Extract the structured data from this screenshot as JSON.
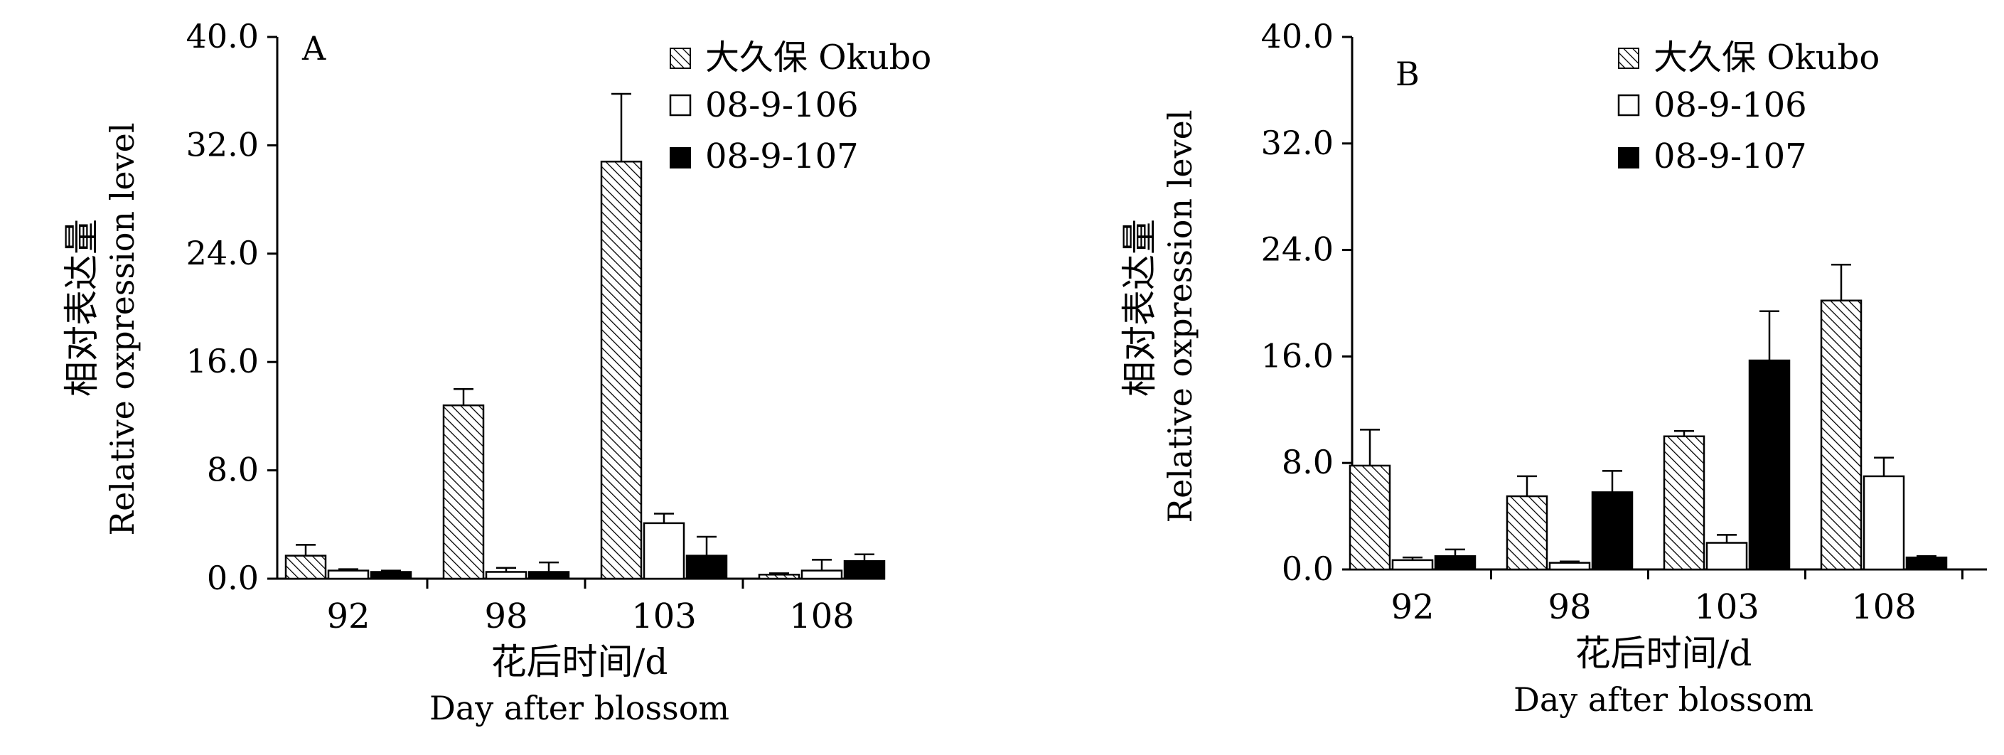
{
  "chart_data": [
    {
      "type": "bar",
      "panel_label": "A",
      "categories": [
        "92",
        "98",
        "103",
        "108"
      ],
      "series": [
        {
          "name": "大久保 Okubo",
          "pattern": "hatched",
          "values": [
            1.7,
            12.8,
            30.8,
            0.3
          ],
          "errors": [
            0.8,
            1.2,
            5.0,
            0.1
          ]
        },
        {
          "name": "08-9-106",
          "pattern": "open",
          "values": [
            0.6,
            0.5,
            4.1,
            0.6
          ],
          "errors": [
            0.1,
            0.3,
            0.7,
            0.8
          ]
        },
        {
          "name": "08-9-107",
          "pattern": "solid",
          "values": [
            0.5,
            0.5,
            1.7,
            1.3
          ],
          "errors": [
            0.1,
            0.7,
            1.4,
            0.5
          ]
        }
      ],
      "ylabel_cn": "相对表达量",
      "ylabel_en": "Relative oxpression level",
      "xlabel_cn": "花后时间/d",
      "xlabel_en": "Day after blossom",
      "ylim": [
        0,
        40
      ],
      "yticks": [
        "0.0",
        "8.0",
        "16.0",
        "24.0",
        "32.0",
        "40.0"
      ],
      "legend_position": "top-right",
      "grid": false
    },
    {
      "type": "bar",
      "panel_label": "B",
      "categories": [
        "92",
        "98",
        "103",
        "108"
      ],
      "series": [
        {
          "name": "大久保 Okubo",
          "pattern": "hatched",
          "values": [
            7.8,
            5.5,
            10.0,
            20.2
          ],
          "errors": [
            2.7,
            1.5,
            0.4,
            2.7
          ]
        },
        {
          "name": "08-9-106",
          "pattern": "open",
          "values": [
            0.7,
            0.5,
            2.0,
            7.0
          ],
          "errors": [
            0.2,
            0.1,
            0.6,
            1.4
          ]
        },
        {
          "name": "08-9-107",
          "pattern": "solid",
          "values": [
            1.0,
            5.8,
            15.7,
            0.9
          ],
          "errors": [
            0.5,
            1.6,
            3.7,
            0.1
          ]
        }
      ],
      "ylabel_cn": "相对表达量",
      "ylabel_en": "Relative oxpression level",
      "xlabel_cn": "花后时间/d",
      "xlabel_en": "Day after blossom",
      "ylim": [
        0,
        40
      ],
      "yticks": [
        "0.0",
        "8.0",
        "16.0",
        "24.0",
        "32.0",
        "40.0"
      ],
      "legend_position": "top-right",
      "grid": false
    }
  ]
}
